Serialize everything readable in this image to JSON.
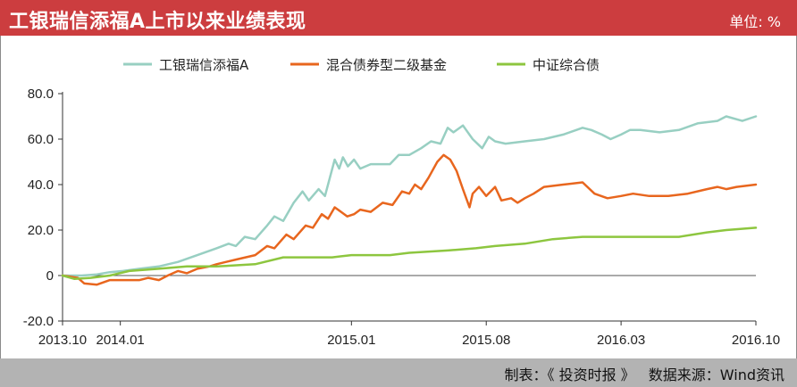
{
  "header": {
    "title": "工银瑞信添福A上市以来业绩表现",
    "unit": "单位: %"
  },
  "footer": {
    "maker": "制表：《 投资时报 》",
    "source": "数据来源：Wind资讯"
  },
  "colors": {
    "header_bg": "#cc3d3f",
    "footer_bg": "#b3b3b3",
    "series": [
      "#98cfc2",
      "#e8661e",
      "#8dc63f"
    ]
  },
  "chart_data": {
    "type": "line",
    "title": "工银瑞信添福A上市以来业绩表现",
    "ylabel": "单位: %",
    "ylim": [
      -20,
      80
    ],
    "yticks": [
      80,
      60,
      40,
      20,
      0,
      -20
    ],
    "ytick_labels": [
      "80.0",
      "60.0",
      "40.0",
      "20.0",
      "0",
      "-20.0"
    ],
    "xlim": [
      "2013-10",
      "2016-10"
    ],
    "xticks": [
      "2013.10",
      "2014.01",
      "2015.01",
      "2015.08",
      "2016.03",
      "2016.10"
    ],
    "grid": false,
    "legend": "top",
    "series": [
      {
        "name": "工银瑞信添福A",
        "points": [
          [
            "2013-10-01",
            0
          ],
          [
            "2013-11-01",
            0
          ],
          [
            "2013-11-25",
            0.5
          ],
          [
            "2013-12-15",
            1.5
          ],
          [
            "2014-01-05",
            2
          ],
          [
            "2014-02-01",
            3
          ],
          [
            "2014-03-01",
            4
          ],
          [
            "2014-04-01",
            6
          ],
          [
            "2014-05-01",
            9
          ],
          [
            "2014-06-01",
            12
          ],
          [
            "2014-06-20",
            14
          ],
          [
            "2014-07-01",
            13
          ],
          [
            "2014-07-15",
            17
          ],
          [
            "2014-08-01",
            16
          ],
          [
            "2014-08-20",
            22
          ],
          [
            "2014-09-01",
            26
          ],
          [
            "2014-09-15",
            24
          ],
          [
            "2014-10-01",
            32
          ],
          [
            "2014-10-15",
            37
          ],
          [
            "2014-10-25",
            33
          ],
          [
            "2014-11-10",
            38
          ],
          [
            "2014-11-20",
            35
          ],
          [
            "2014-12-05",
            51
          ],
          [
            "2014-12-12",
            47
          ],
          [
            "2014-12-18",
            52
          ],
          [
            "2014-12-26",
            48
          ],
          [
            "2015-01-05",
            51
          ],
          [
            "2015-01-15",
            47
          ],
          [
            "2015-02-01",
            49
          ],
          [
            "2015-03-01",
            49
          ],
          [
            "2015-03-15",
            53
          ],
          [
            "2015-04-01",
            53
          ],
          [
            "2015-04-20",
            56
          ],
          [
            "2015-05-05",
            59
          ],
          [
            "2015-05-20",
            58
          ],
          [
            "2015-06-01",
            65
          ],
          [
            "2015-06-10",
            63
          ],
          [
            "2015-06-25",
            66
          ],
          [
            "2015-07-10",
            60
          ],
          [
            "2015-07-25",
            56
          ],
          [
            "2015-08-05",
            61
          ],
          [
            "2015-08-15",
            59
          ],
          [
            "2015-09-01",
            58
          ],
          [
            "2015-10-01",
            59
          ],
          [
            "2015-11-01",
            60
          ],
          [
            "2015-12-01",
            62
          ],
          [
            "2016-01-01",
            65
          ],
          [
            "2016-01-15",
            64
          ],
          [
            "2016-02-01",
            62
          ],
          [
            "2016-02-15",
            60
          ],
          [
            "2016-03-01",
            62
          ],
          [
            "2016-03-15",
            64
          ],
          [
            "2016-04-01",
            64
          ],
          [
            "2016-05-01",
            63
          ],
          [
            "2016-06-01",
            64
          ],
          [
            "2016-07-01",
            67
          ],
          [
            "2016-08-01",
            68
          ],
          [
            "2016-08-15",
            70
          ],
          [
            "2016-09-10",
            68
          ],
          [
            "2016-10-01",
            70
          ]
        ]
      },
      {
        "name": "混合债券型二级基金",
        "points": [
          [
            "2013-10-01",
            0
          ],
          [
            "2013-10-25",
            -1
          ],
          [
            "2013-11-05",
            -3.5
          ],
          [
            "2013-11-25",
            -4
          ],
          [
            "2013-12-15",
            -2
          ],
          [
            "2014-01-01",
            -2
          ],
          [
            "2014-02-01",
            -2
          ],
          [
            "2014-02-15",
            -1
          ],
          [
            "2014-03-01",
            -2
          ],
          [
            "2014-03-15",
            0
          ],
          [
            "2014-04-01",
            2
          ],
          [
            "2014-04-15",
            1
          ],
          [
            "2014-05-01",
            3
          ],
          [
            "2014-05-20",
            4
          ],
          [
            "2014-06-01",
            5
          ],
          [
            "2014-07-01",
            7
          ],
          [
            "2014-08-01",
            9
          ],
          [
            "2014-08-20",
            13
          ],
          [
            "2014-09-01",
            12
          ],
          [
            "2014-09-20",
            18
          ],
          [
            "2014-10-01",
            16
          ],
          [
            "2014-10-20",
            22
          ],
          [
            "2014-11-01",
            21
          ],
          [
            "2014-11-15",
            27
          ],
          [
            "2014-11-25",
            25
          ],
          [
            "2014-12-05",
            30
          ],
          [
            "2014-12-15",
            28
          ],
          [
            "2014-12-25",
            26
          ],
          [
            "2015-01-05",
            27
          ],
          [
            "2015-01-15",
            29
          ],
          [
            "2015-02-01",
            28
          ],
          [
            "2015-02-20",
            32
          ],
          [
            "2015-03-05",
            31
          ],
          [
            "2015-03-20",
            37
          ],
          [
            "2015-04-01",
            36
          ],
          [
            "2015-04-10",
            40
          ],
          [
            "2015-04-20",
            38
          ],
          [
            "2015-05-01",
            43
          ],
          [
            "2015-05-15",
            50
          ],
          [
            "2015-05-25",
            53
          ],
          [
            "2015-06-05",
            51
          ],
          [
            "2015-06-15",
            46
          ],
          [
            "2015-06-25",
            38
          ],
          [
            "2015-07-05",
            30
          ],
          [
            "2015-07-10",
            36
          ],
          [
            "2015-07-20",
            39
          ],
          [
            "2015-08-01",
            35
          ],
          [
            "2015-08-15",
            39
          ],
          [
            "2015-08-25",
            33
          ],
          [
            "2015-09-10",
            34
          ],
          [
            "2015-09-20",
            32
          ],
          [
            "2015-10-01",
            34
          ],
          [
            "2015-10-15",
            36
          ],
          [
            "2015-11-01",
            39
          ],
          [
            "2015-12-01",
            40
          ],
          [
            "2016-01-01",
            41
          ],
          [
            "2016-01-20",
            36
          ],
          [
            "2016-02-10",
            34
          ],
          [
            "2016-03-01",
            35
          ],
          [
            "2016-03-20",
            36
          ],
          [
            "2016-04-15",
            35
          ],
          [
            "2016-05-15",
            35
          ],
          [
            "2016-06-15",
            36
          ],
          [
            "2016-07-15",
            38
          ],
          [
            "2016-08-01",
            39
          ],
          [
            "2016-08-15",
            38
          ],
          [
            "2016-09-01",
            39
          ],
          [
            "2016-10-01",
            40
          ]
        ]
      },
      {
        "name": "中证综合债",
        "points": [
          [
            "2013-10-01",
            0
          ],
          [
            "2013-10-20",
            -1.5
          ],
          [
            "2013-11-15",
            -1
          ],
          [
            "2013-12-15",
            0
          ],
          [
            "2014-01-15",
            2
          ],
          [
            "2014-03-01",
            3
          ],
          [
            "2014-04-15",
            4
          ],
          [
            "2014-06-01",
            4
          ],
          [
            "2014-08-01",
            5
          ],
          [
            "2014-09-15",
            8
          ],
          [
            "2014-12-01",
            8
          ],
          [
            "2015-01-01",
            9
          ],
          [
            "2015-03-01",
            9
          ],
          [
            "2015-04-01",
            10
          ],
          [
            "2015-06-01",
            11
          ],
          [
            "2015-07-15",
            12
          ],
          [
            "2015-08-15",
            13
          ],
          [
            "2015-10-01",
            14
          ],
          [
            "2015-11-15",
            16
          ],
          [
            "2016-01-01",
            17
          ],
          [
            "2016-03-01",
            17
          ],
          [
            "2016-06-01",
            17
          ],
          [
            "2016-07-15",
            19
          ],
          [
            "2016-08-15",
            20
          ],
          [
            "2016-10-01",
            21
          ]
        ]
      }
    ]
  }
}
